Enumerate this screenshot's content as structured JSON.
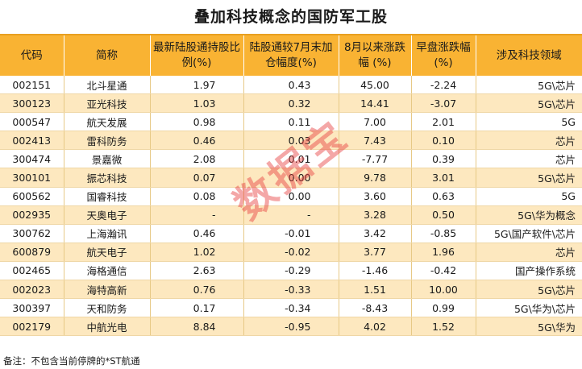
{
  "title": "叠加科技概念的国防军工股",
  "headers": [
    "代码",
    "简称",
    "最新陆股通持股比例(%)",
    "陆股通较7月末加仓幅度(%)",
    "8月以来涨跌幅 (%)",
    "早盘涨跌幅(%)",
    "涉及科技领域"
  ],
  "rows": [
    [
      "002151",
      "北斗星通",
      "1.97",
      "0.43",
      "45.00",
      "-2.24",
      "5G\\芯片"
    ],
    [
      "300123",
      "亚光科技",
      "1.03",
      "0.32",
      "14.41",
      "-3.07",
      "5G\\芯片"
    ],
    [
      "000547",
      "航天发展",
      "0.98",
      "0.11",
      "7.00",
      "2.01",
      "5G"
    ],
    [
      "002413",
      "雷科防务",
      "0.46",
      "0.03",
      "7.43",
      "0.10",
      "芯片"
    ],
    [
      "300474",
      "景嘉微",
      "2.08",
      "0.01",
      "-7.77",
      "0.39",
      "芯片"
    ],
    [
      "300101",
      "振芯科技",
      "0.07",
      "0.00",
      "9.78",
      "3.01",
      "5G\\芯片"
    ],
    [
      "600562",
      "国睿科技",
      "0.08",
      "0.00",
      "3.60",
      "0.63",
      "5G"
    ],
    [
      "002935",
      "天奥电子",
      "-",
      "-",
      "3.28",
      "0.50",
      "5G\\华为概念"
    ],
    [
      "300762",
      "上海瀚讯",
      "0.46",
      "-0.01",
      "3.42",
      "-0.85",
      "5G\\国产软件\\芯片"
    ],
    [
      "600879",
      "航天电子",
      "1.02",
      "-0.02",
      "3.77",
      "1.96",
      "芯片"
    ],
    [
      "002465",
      "海格通信",
      "2.63",
      "-0.29",
      "-1.46",
      "-0.42",
      "国产操作系统"
    ],
    [
      "002023",
      "海特高新",
      "0.76",
      "-0.33",
      "1.51",
      "10.00",
      "5G\\芯片"
    ],
    [
      "300397",
      "天和防务",
      "0.17",
      "-0.34",
      "-8.43",
      "0.99",
      "5G\\华为\\芯片"
    ],
    [
      "002179",
      "中航光电",
      "8.84",
      "-0.95",
      "4.02",
      "1.52",
      "5G\\华为"
    ]
  ],
  "footer": "备注：不包含当前停牌的*ST航通",
  "watermark": "数据宝",
  "colors": {
    "header_bg": "#f9b333",
    "stripe_bg": "#fde8bf",
    "watermark": "#e63c3c"
  }
}
